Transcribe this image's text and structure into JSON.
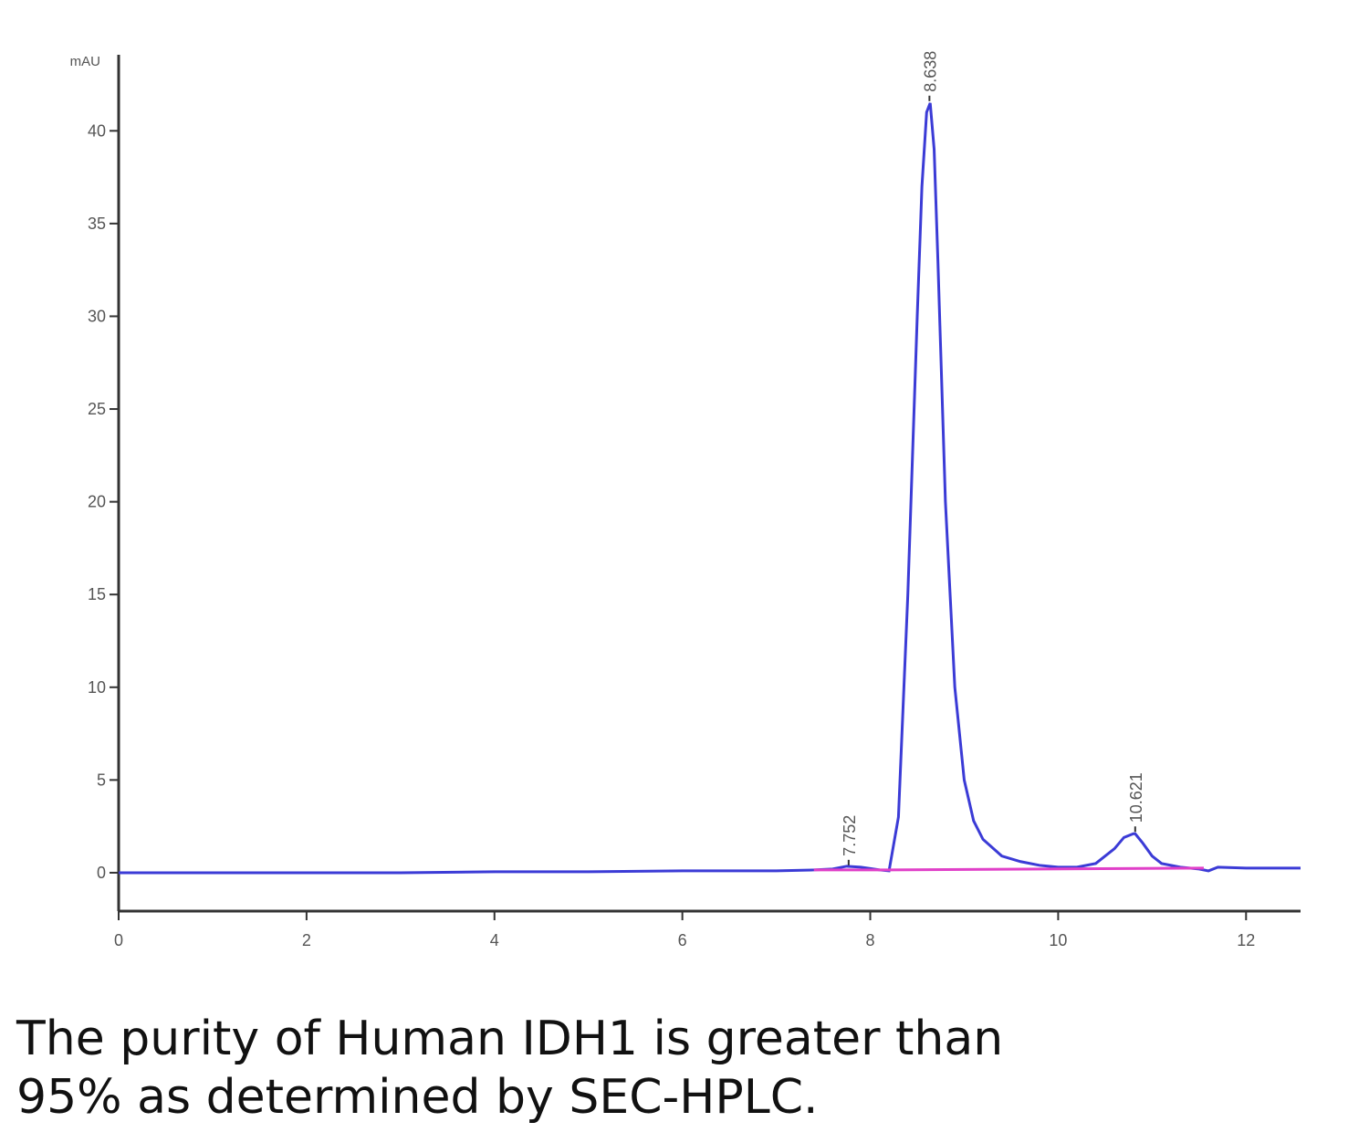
{
  "chart_data": {
    "type": "line",
    "y_label": "mAU",
    "xlim": [
      0,
      12.58
    ],
    "ylim": [
      -2.07,
      44.1
    ],
    "xticks": [
      0,
      2,
      4,
      6,
      8,
      10,
      12
    ],
    "yticks": [
      0,
      5,
      10,
      15,
      20,
      25,
      30,
      35,
      40
    ],
    "series": [
      {
        "color": "#3b3bd6",
        "x": [
          0,
          1,
          2,
          3,
          4,
          5,
          6,
          7,
          7.4,
          7.6,
          7.75,
          7.9,
          8.1,
          8.2,
          8.3,
          8.4,
          8.5,
          8.55,
          8.6,
          8.638,
          8.68,
          8.72,
          8.8,
          8.9,
          9.0,
          9.1,
          9.2,
          9.4,
          9.6,
          9.8,
          10.0,
          10.2,
          10.4,
          10.6,
          10.7,
          10.8,
          10.82,
          10.9,
          11.0,
          11.1,
          11.3,
          11.5,
          11.6,
          11.7,
          12.0,
          12.58
        ],
        "values": [
          0,
          0,
          0,
          0,
          0.05,
          0.05,
          0.1,
          0.1,
          0.15,
          0.2,
          0.35,
          0.3,
          0.15,
          0.1,
          3,
          15,
          30,
          37,
          41,
          41.5,
          39,
          33,
          20,
          10,
          5,
          2.8,
          1.8,
          0.9,
          0.6,
          0.4,
          0.3,
          0.3,
          0.5,
          1.3,
          1.9,
          2.1,
          2.1,
          1.6,
          0.9,
          0.5,
          0.3,
          0.2,
          0.1,
          0.3,
          0.25,
          0.25
        ]
      },
      {
        "color": "#e040c8",
        "x": [
          7.4,
          8.2,
          11.55
        ],
        "values": [
          0.15,
          0.15,
          0.25
        ]
      }
    ],
    "annotations": [
      {
        "text": "7.752",
        "x": 7.77,
        "y": 0.4
      },
      {
        "text": "8.638",
        "x": 8.63,
        "y": 41.6
      },
      {
        "text": "10.621",
        "x": 10.82,
        "y": 2.2
      }
    ],
    "caption": [
      "The purity of Human IDH1 is greater than",
      "95% as determined by SEC-HPLC."
    ]
  }
}
